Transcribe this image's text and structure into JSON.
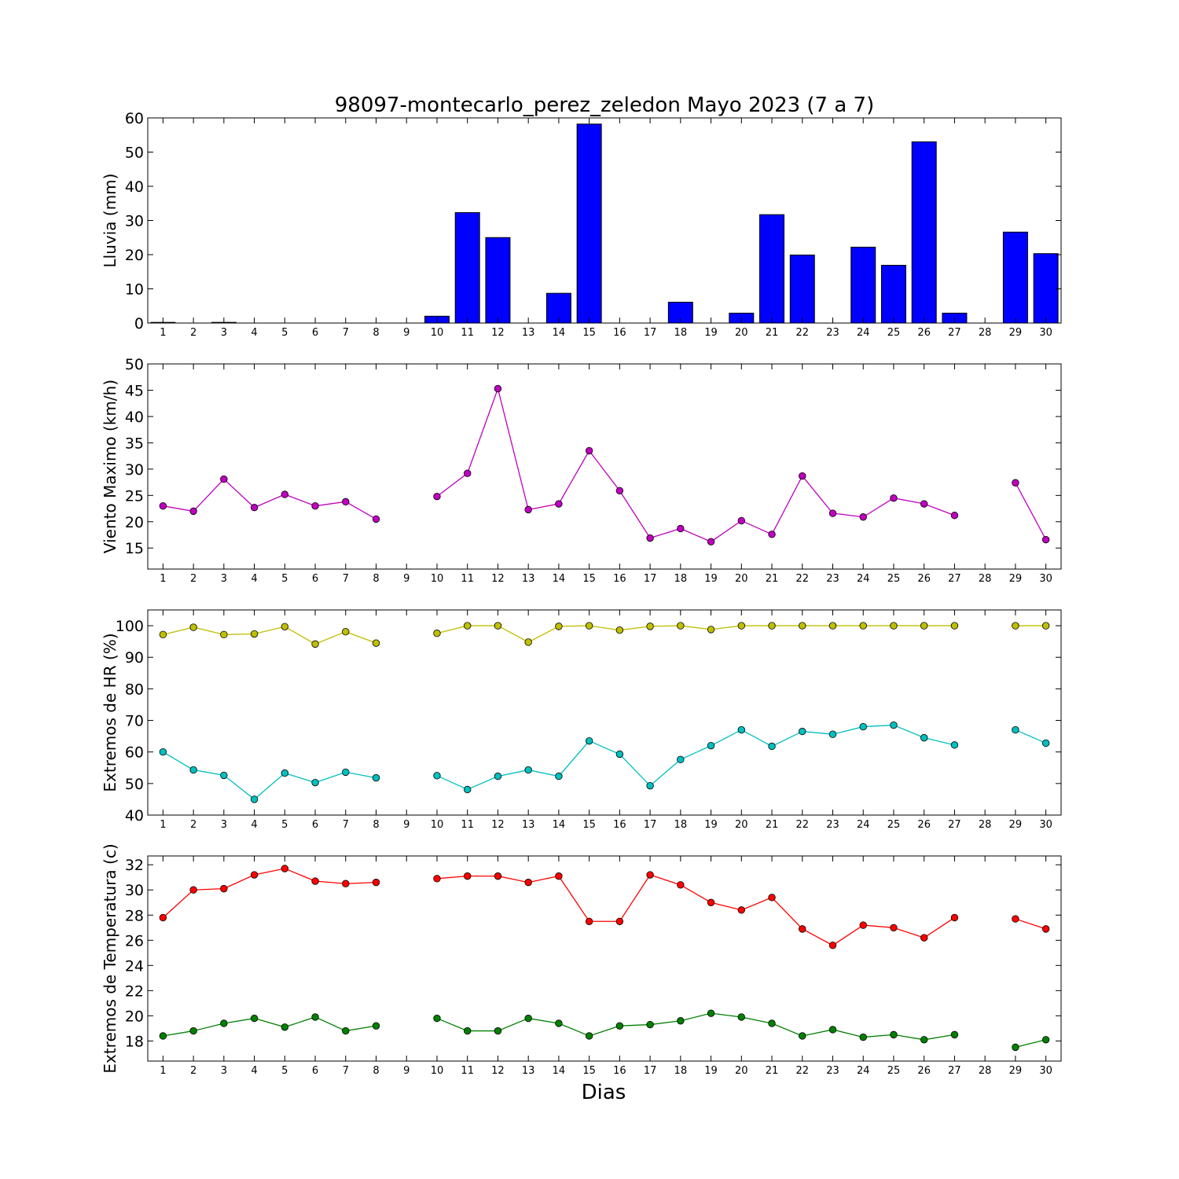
{
  "title": "98097-montecarlo_perez_zeledon Mayo 2023  (7 a 7)",
  "xlabel": "Dias",
  "chart_data": [
    {
      "type": "bar",
      "ylabel": "Lluvia (mm)",
      "ylim": [
        0,
        60
      ],
      "yticks": [
        0,
        10,
        20,
        30,
        40,
        50,
        60
      ],
      "color": "#0000ff",
      "x": [
        1,
        2,
        3,
        4,
        5,
        6,
        7,
        8,
        9,
        10,
        11,
        12,
        13,
        14,
        15,
        16,
        17,
        18,
        19,
        20,
        21,
        22,
        23,
        24,
        25,
        26,
        27,
        28,
        29,
        30
      ],
      "values": [
        0.2,
        0,
        0.2,
        0,
        0,
        0,
        0,
        0,
        0,
        2.0,
        32.3,
        25.0,
        0,
        8.7,
        58.2,
        0,
        0,
        6.1,
        0,
        2.9,
        31.7,
        19.9,
        0,
        22.2,
        16.9,
        53.0,
        2.9,
        0,
        26.6,
        20.3
      ]
    },
    {
      "type": "line",
      "ylabel": "Viento Maximo (km/h)",
      "ylim": [
        11,
        50
      ],
      "yticks": [
        15,
        20,
        25,
        30,
        35,
        40,
        45,
        50
      ],
      "x": [
        1,
        2,
        3,
        4,
        5,
        6,
        7,
        8,
        9,
        10,
        11,
        12,
        13,
        14,
        15,
        16,
        17,
        18,
        19,
        20,
        21,
        22,
        23,
        24,
        25,
        26,
        27,
        28,
        29,
        30
      ],
      "series": [
        {
          "color": "#bf00bf",
          "values": [
            23.0,
            22.0,
            28.1,
            22.7,
            25.2,
            23.0,
            23.8,
            20.5,
            null,
            24.8,
            29.2,
            45.3,
            22.3,
            23.4,
            33.5,
            25.9,
            16.9,
            18.7,
            16.2,
            20.2,
            17.6,
            28.7,
            21.6,
            20.9,
            24.5,
            23.4,
            21.2,
            null,
            27.4,
            16.6
          ]
        }
      ]
    },
    {
      "type": "line",
      "ylabel": "Extremos de HR (%)",
      "ylim": [
        40,
        105
      ],
      "yticks": [
        40,
        50,
        60,
        70,
        80,
        90,
        100
      ],
      "x": [
        1,
        2,
        3,
        4,
        5,
        6,
        7,
        8,
        9,
        10,
        11,
        12,
        13,
        14,
        15,
        16,
        17,
        18,
        19,
        20,
        21,
        22,
        23,
        24,
        25,
        26,
        27,
        28,
        29,
        30
      ],
      "series": [
        {
          "color": "#bfbf00",
          "values": [
            97.2,
            99.5,
            97.2,
            97.4,
            99.7,
            94.2,
            98.1,
            94.5,
            null,
            97.6,
            100,
            100,
            94.8,
            99.8,
            100,
            98.6,
            99.8,
            100,
            98.8,
            100,
            100,
            100,
            100,
            100,
            100,
            100,
            100,
            null,
            100,
            100
          ]
        },
        {
          "color": "#00bfbf",
          "values": [
            60.0,
            54.3,
            52.6,
            45.0,
            53.3,
            50.3,
            53.6,
            51.8,
            null,
            52.5,
            48.1,
            52.3,
            54.3,
            52.3,
            63.5,
            59.3,
            49.3,
            57.6,
            62.0,
            67.0,
            61.8,
            66.5,
            65.6,
            68.0,
            68.5,
            64.5,
            62.2,
            null,
            67.0,
            62.8
          ]
        }
      ]
    },
    {
      "type": "line",
      "ylabel": "Extremos de Temperatura (c)",
      "ylim": [
        16.4,
        32.7
      ],
      "yticks": [
        18,
        20,
        22,
        24,
        26,
        28,
        30,
        32
      ],
      "x": [
        1,
        2,
        3,
        4,
        5,
        6,
        7,
        8,
        9,
        10,
        11,
        12,
        13,
        14,
        15,
        16,
        17,
        18,
        19,
        20,
        21,
        22,
        23,
        24,
        25,
        26,
        27,
        28,
        29,
        30
      ],
      "series": [
        {
          "color": "#ff0000",
          "values": [
            27.8,
            30.0,
            30.1,
            31.2,
            31.7,
            30.7,
            30.5,
            30.6,
            null,
            30.9,
            31.1,
            31.1,
            30.6,
            31.1,
            27.5,
            27.5,
            31.2,
            30.4,
            29.0,
            28.4,
            29.4,
            26.9,
            25.6,
            27.2,
            27.0,
            26.2,
            27.8,
            null,
            27.7,
            26.9
          ]
        },
        {
          "color": "#008000",
          "values": [
            18.4,
            18.8,
            19.4,
            19.8,
            19.1,
            19.9,
            18.8,
            19.2,
            null,
            19.8,
            18.8,
            18.8,
            19.8,
            19.4,
            18.4,
            19.2,
            19.3,
            19.6,
            20.2,
            19.9,
            19.4,
            18.4,
            18.9,
            18.3,
            18.5,
            18.1,
            18.5,
            null,
            17.5,
            18.1
          ]
        }
      ]
    }
  ]
}
